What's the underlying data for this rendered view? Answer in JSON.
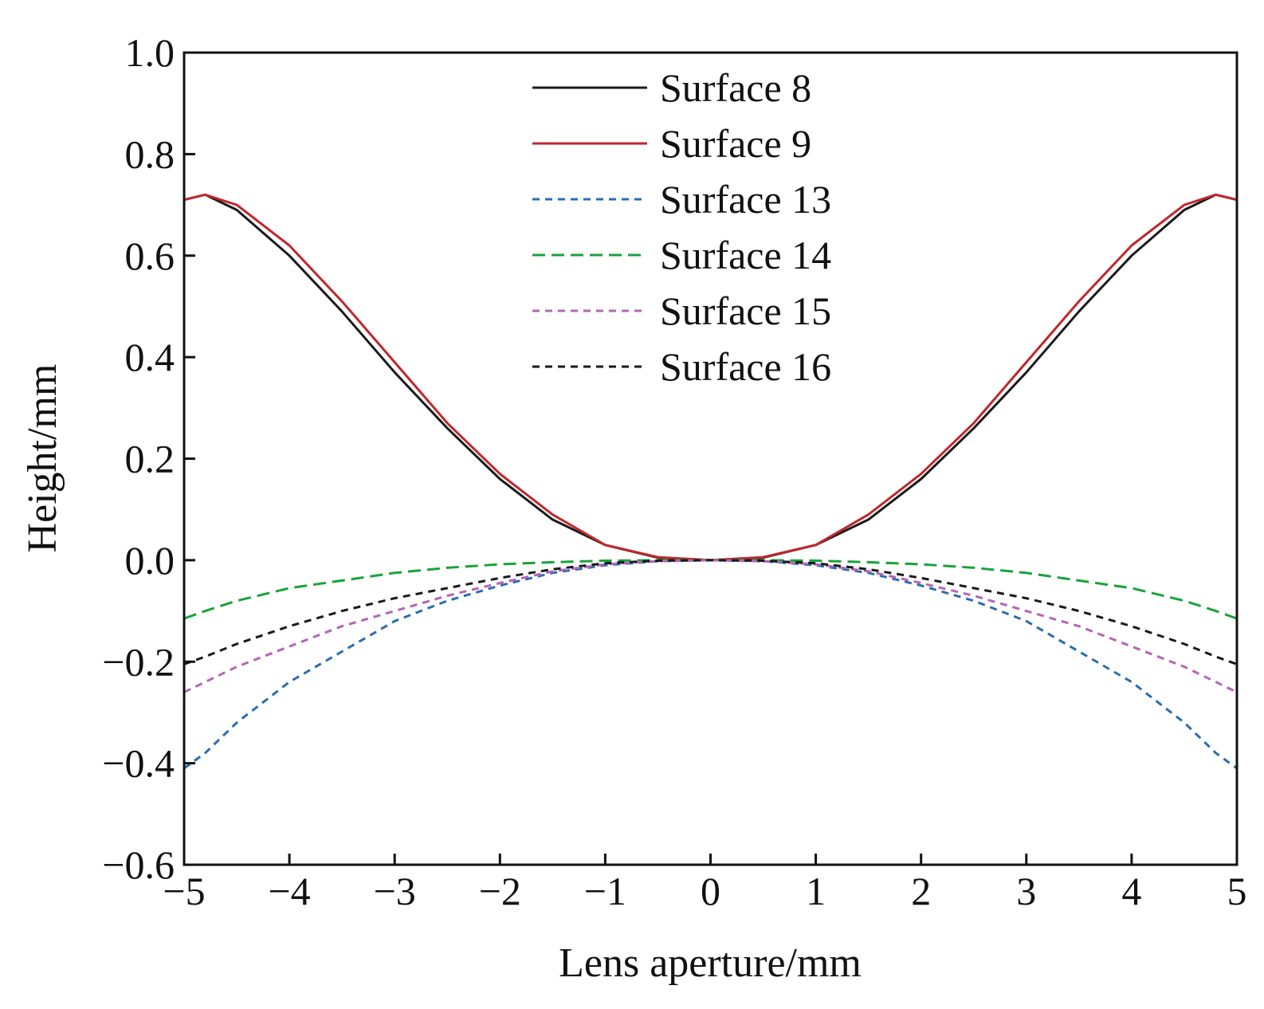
{
  "chart_data": {
    "type": "line",
    "title": "",
    "xlabel": "Lens aperture/mm",
    "ylabel": "Height/mm",
    "xlim": [
      -5,
      5
    ],
    "ylim": [
      -0.6,
      1.0
    ],
    "grid": false,
    "legend_position": "top-center",
    "x_ticks": [
      -5,
      -4,
      -3,
      -2,
      -1,
      0,
      1,
      2,
      3,
      4,
      5
    ],
    "x_tick_labels": [
      "−5",
      "−4",
      "−3",
      "−2",
      "−1",
      "0",
      "1",
      "2",
      "3",
      "4",
      "5"
    ],
    "y_ticks": [
      -0.6,
      -0.4,
      -0.2,
      0.0,
      0.2,
      0.4,
      0.6,
      0.8,
      1.0
    ],
    "y_tick_labels": [
      "−0.6",
      "−0.4",
      "−0.2",
      "0.0",
      "0.2",
      "0.4",
      "0.6",
      "0.8",
      "1.0"
    ],
    "x": [
      -5,
      -4.8,
      -4.5,
      -4,
      -3.5,
      -3,
      -2.5,
      -2,
      -1.5,
      -1,
      -0.5,
      0,
      0.5,
      1,
      1.5,
      2,
      2.5,
      3,
      3.5,
      4,
      4.5,
      4.8,
      5
    ],
    "series": [
      {
        "name": "Surface 8",
        "color": "#1a1a1a",
        "dash": "solid",
        "values": [
          0.71,
          0.72,
          0.69,
          0.6,
          0.49,
          0.37,
          0.26,
          0.16,
          0.08,
          0.03,
          0.005,
          0.0,
          0.005,
          0.03,
          0.08,
          0.16,
          0.26,
          0.37,
          0.49,
          0.6,
          0.69,
          0.72,
          0.71
        ]
      },
      {
        "name": "Surface 9",
        "color": "#c0272d",
        "dash": "solid",
        "values": [
          0.71,
          0.72,
          0.7,
          0.62,
          0.51,
          0.39,
          0.27,
          0.17,
          0.09,
          0.03,
          0.006,
          0.0,
          0.006,
          0.03,
          0.09,
          0.17,
          0.27,
          0.39,
          0.51,
          0.62,
          0.7,
          0.72,
          0.71
        ]
      },
      {
        "name": "Surface 13",
        "color": "#2a6db0",
        "dash": "short",
        "values": [
          -0.41,
          -0.38,
          -0.32,
          -0.24,
          -0.18,
          -0.12,
          -0.08,
          -0.05,
          -0.025,
          -0.01,
          -0.002,
          0.0,
          -0.002,
          -0.01,
          -0.025,
          -0.05,
          -0.08,
          -0.12,
          -0.18,
          -0.24,
          -0.32,
          -0.38,
          -0.41
        ]
      },
      {
        "name": "Surface 14",
        "color": "#17a33a",
        "dash": "long",
        "values": [
          -0.115,
          -0.1,
          -0.08,
          -0.055,
          -0.04,
          -0.025,
          -0.015,
          -0.008,
          -0.004,
          -0.001,
          0.0,
          0.0,
          0.0,
          -0.001,
          -0.004,
          -0.008,
          -0.015,
          -0.025,
          -0.04,
          -0.055,
          -0.08,
          -0.1,
          -0.115
        ]
      },
      {
        "name": "Surface 15",
        "color": "#b565b5",
        "dash": "short",
        "values": [
          -0.26,
          -0.24,
          -0.21,
          -0.17,
          -0.13,
          -0.1,
          -0.07,
          -0.045,
          -0.022,
          -0.008,
          -0.002,
          0.0,
          -0.002,
          -0.008,
          -0.022,
          -0.045,
          -0.07,
          -0.1,
          -0.13,
          -0.17,
          -0.21,
          -0.24,
          -0.26
        ]
      },
      {
        "name": "Surface 16",
        "color": "#1a1a1a",
        "dash": "short",
        "values": [
          -0.205,
          -0.19,
          -0.165,
          -0.13,
          -0.1,
          -0.075,
          -0.055,
          -0.035,
          -0.018,
          -0.006,
          -0.001,
          0.0,
          -0.001,
          -0.006,
          -0.018,
          -0.035,
          -0.055,
          -0.075,
          -0.1,
          -0.13,
          -0.165,
          -0.19,
          -0.205
        ]
      }
    ]
  }
}
